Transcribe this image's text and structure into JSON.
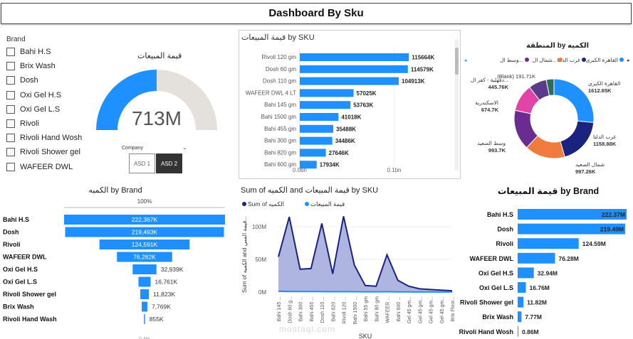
{
  "header": {
    "title": "Dashboard By Sku"
  },
  "brand_slicer": {
    "title": "Brand",
    "items": [
      "Bahi H.S",
      "Brix Wash",
      "Dosh",
      "Oxi Gel H.S",
      "Oxi Gel L.S",
      "Rivoli",
      "Rivoli Hand Wosh",
      "Rivoli Shower gel",
      "WAFEER DWL"
    ]
  },
  "gauge": {
    "title": "قيمة المبيعات",
    "value": "713M",
    "fill_fraction": 0.5
  },
  "company_slicer": {
    "label": "Company",
    "options": [
      "ASD 1",
      "ASD 2"
    ],
    "selected": "ASD 2"
  },
  "colors": {
    "bar": "#1e90ff",
    "navy": "#1a237e",
    "area": "#9fa8da",
    "gauge_bg": "#e4e1dc",
    "orange": "#f07b3f",
    "magenta": "#e044a7",
    "purple": "#6b2c91",
    "teal": "#2e6d5c"
  },
  "chart_data": [
    {
      "type": "bar",
      "title": "قيمة المبيعات by SKU",
      "categories": [
        "Rivoli 120 gm",
        "Dosh 60 gm",
        "Dosh 110 gm",
        "WAFEER DWL 4 LT",
        "Bahi 145 gm",
        "Bahi 1500 gm",
        "Bahi 455 gm",
        "Bahi 300 gm",
        "Bahi 820 gm",
        "Bahi 600 gm"
      ],
      "values": [
        115664,
        114579,
        104913,
        57025,
        53763,
        41018,
        35488,
        34486,
        27646,
        17934
      ],
      "labels": [
        "115664K",
        "114579K",
        "104913K",
        "57025K",
        "53763K",
        "41018K",
        "35488K",
        "34486K",
        "27646K",
        "17934K"
      ],
      "x_ticks": [
        "0.0bn",
        "0.1bn"
      ]
    },
    {
      "type": "pie",
      "title": "المنطقة by الكميه",
      "legend": [
        "القاهرة الكبرى",
        "غرب الدلتا",
        "شمال ال...",
        "وسط ال..."
      ],
      "slices": [
        {
          "name": "القاهرة الكبرى",
          "value": 1612.65,
          "label": "1612.65K",
          "color": "#1e90ff"
        },
        {
          "name": "غرب الدلتا",
          "value": 1158.88,
          "label": "1158.88K",
          "color": "#1a237e"
        },
        {
          "name": "شمال الصعيد",
          "value": 997.26,
          "label": "997.26K",
          "color": "#f07b3f"
        },
        {
          "name": "وسط الصعيد",
          "value": 993.7,
          "label": "993.7K",
          "color": "#6b2c91"
        },
        {
          "name": "الاسكندرية",
          "value": 674.7,
          "label": "674.7K",
          "color": "#e044a7"
        },
        {
          "name": "دقهلية - كفر ال...",
          "value": 445.76,
          "label": "445.76K",
          "color": "#5b3a8c"
        },
        {
          "name": "(Blank)",
          "value": 191.71,
          "label": "191.71K",
          "color": "#2e6d5c"
        }
      ]
    },
    {
      "type": "bar",
      "title": "الكميه by Brand",
      "top_label": "100%",
      "categories": [
        "Bahi H.S",
        "Dosh",
        "Rivoli",
        "WAFEER DWL",
        "Oxi Gel H.S",
        "Oxi Gel L.S",
        "Rivoli Shower gel",
        "Brix Wash",
        "Rivoli Hand Wash"
      ],
      "values": [
        222367,
        219493,
        124591,
        76282,
        32939,
        16761,
        11823,
        7769,
        855
      ],
      "labels": [
        "222,367K",
        "219,493K",
        "124,591K",
        "76,282K",
        "32,939K",
        "16,761K",
        "11,823K",
        "7,769K",
        "855K"
      ],
      "bottom_label": "0.4%"
    },
    {
      "type": "area",
      "title": "Sum of الكميه and قيمة المبيعات by SKU",
      "legend": [
        "Sum of الكميه",
        "قيمة المبيعات"
      ],
      "xlabel": "SKU",
      "ylabel": "Sum of الكميه and قيمة المبي...",
      "y_ticks": [
        "0M",
        "50M",
        "100M"
      ],
      "categories": [
        "Bahi 145 ...",
        "Dosh 60 g...",
        "Bahi 300 ...",
        "Bahi 455 ...",
        "Dosh 110 ...",
        "Bahi 820 ...",
        "Rivoli 120 ...",
        "Bahi 1500 ...",
        "Bahi 55 gm",
        "Bahi 80 gm",
        "WAFEER ...",
        "Bahi 600 ...",
        "Gel 45 gm...",
        "Gel 45 gm...",
        "Gel 45 gm...",
        "Gel 45 gm...",
        "Brix Floor..."
      ],
      "series": [
        {
          "name": "قيمة المبيعات",
          "values": [
            54,
            115,
            35,
            36,
            105,
            28,
            116,
            41,
            10,
            9,
            57,
            18,
            9,
            5,
            4,
            3,
            2
          ]
        },
        {
          "name": "Sum of الكميه",
          "values": [
            1.2,
            1.0,
            0.9,
            0.8,
            0.8,
            0.6,
            0.7,
            0.5,
            0.4,
            0.4,
            0.5,
            0.3,
            0.3,
            0.2,
            0.2,
            0.2,
            0.1
          ]
        }
      ],
      "ylim": [
        0,
        125
      ]
    },
    {
      "type": "bar",
      "title": "قيمة المبيعات by Brand",
      "categories": [
        "Bahi H.S",
        "Dosh",
        "Rivoli",
        "WAFEER DWL",
        "Oxi Gel H.S",
        "Oxi Gel L.S",
        "Rivoli Shower gel",
        "Brix Wash",
        "Rivoli Hand Wosh"
      ],
      "values": [
        222.37,
        219.49,
        124.59,
        76.28,
        32.94,
        16.76,
        11.82,
        7.77,
        0.86
      ],
      "labels": [
        "222.37M",
        "219.49M",
        "124.59M",
        "76.28M",
        "32.94M",
        "16.76M",
        "11.82M",
        "7.77M",
        "0.86M"
      ]
    }
  ],
  "watermark": "mostaql.com"
}
